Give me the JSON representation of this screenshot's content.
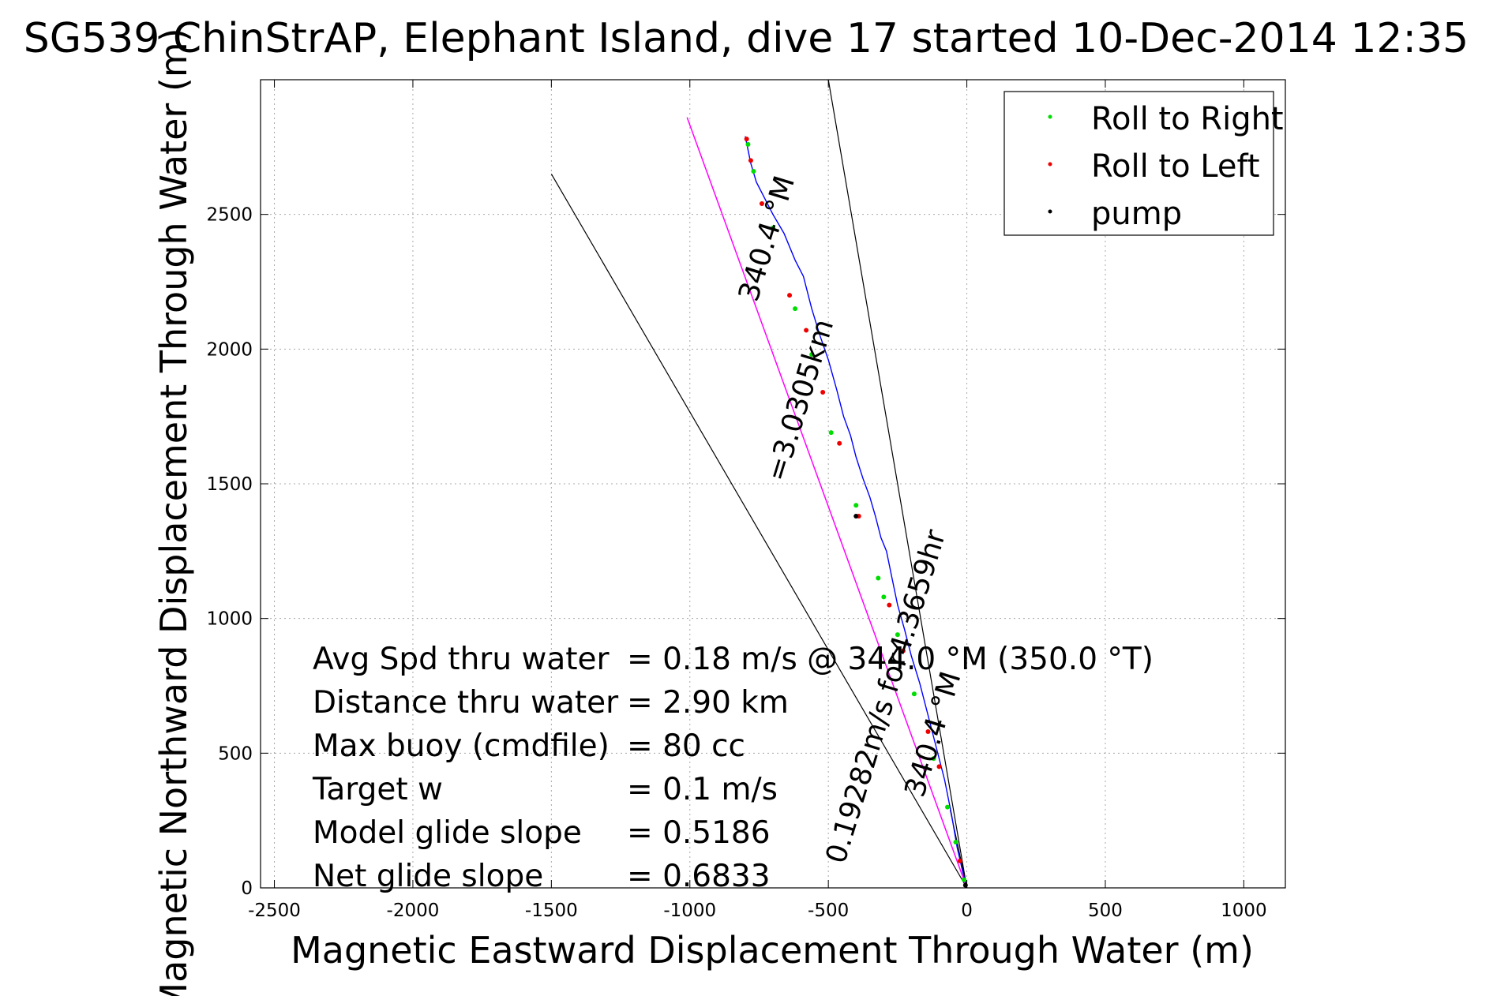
{
  "chart_data": {
    "type": "line",
    "title": "SG539 ChinStrAP, Elephant Island, dive 17 started 10-Dec-2014 12:35",
    "xlabel": "Magnetic Eastward Displacement Through Water (m)",
    "ylabel": "Magnetic Northward Displacement Through Water (m)",
    "xlim": [
      -2550,
      1150
    ],
    "ylim": [
      0,
      3000
    ],
    "x_ticks": [
      -2500,
      -2000,
      -1500,
      -1000,
      -500,
      0,
      500,
      1000
    ],
    "y_ticks": [
      0,
      500,
      1000,
      1500,
      2000,
      2500
    ],
    "x_tick_labels": [
      "-2500",
      "-2000",
      "-1500",
      "-1000",
      "-500",
      "0",
      "500",
      "1000"
    ],
    "y_tick_labels": [
      "0",
      "500",
      "1000",
      "1500",
      "2000",
      "2500"
    ],
    "grid": true,
    "legend_position": "top-right",
    "legend": [
      {
        "label": "Roll to Right",
        "color": "#00dd00"
      },
      {
        "label": "Roll to Left",
        "color": "#ee0000"
      },
      {
        "label": "pump",
        "color": "#000000"
      }
    ],
    "track": {
      "color": "#0000ff",
      "x": [
        0,
        -15,
        -35,
        -55,
        -80,
        -110,
        -140,
        -170,
        -200,
        -225,
        -250,
        -270,
        -290,
        -310,
        -330,
        -350,
        -375,
        -400,
        -420,
        -445,
        -470,
        -500,
        -530,
        -560,
        -590,
        -620,
        -660,
        -700,
        -730,
        -760,
        -780,
        -790,
        -800
      ],
      "y": [
        0,
        60,
        150,
        270,
        400,
        520,
        640,
        760,
        860,
        960,
        1050,
        1150,
        1250,
        1300,
        1380,
        1450,
        1520,
        1600,
        1680,
        1750,
        1850,
        1960,
        2050,
        2150,
        2270,
        2330,
        2430,
        2500,
        2560,
        2620,
        2690,
        2740,
        2790
      ]
    },
    "magenta_line": {
      "color": "#ff00ff",
      "x": [
        0,
        -1010
      ],
      "y": [
        0,
        2860
      ]
    },
    "reference_lines": [
      {
        "x": [
          0,
          -1500
        ],
        "y": [
          0,
          2650
        ],
        "color": "#000000"
      },
      {
        "x": [
          0,
          -500
        ],
        "y": [
          0,
          3000
        ],
        "color": "#000000"
      },
      {
        "x": [
          0,
          -60
        ],
        "y": [
          0,
          290
        ],
        "color": "#000000"
      }
    ],
    "roll_right_points": {
      "x": [
        -10,
        -40,
        -70,
        -120,
        -190,
        -250,
        -300,
        -320,
        -400,
        -490,
        -560,
        -620,
        -700,
        -770,
        -790
      ],
      "y": [
        30,
        170,
        300,
        480,
        720,
        940,
        1080,
        1150,
        1420,
        1690,
        1980,
        2150,
        2450,
        2660,
        2760
      ],
      "color": "#00dd00"
    },
    "roll_left_points": {
      "x": [
        -25,
        -100,
        -140,
        -230,
        -280,
        -390,
        -460,
        -520,
        -580,
        -640,
        -740,
        -780,
        -795
      ],
      "y": [
        100,
        450,
        580,
        880,
        1050,
        1380,
        1650,
        1840,
        2070,
        2200,
        2540,
        2700,
        2780
      ],
      "color": "#ee0000"
    },
    "pump_points": {
      "x": [
        -5,
        -400
      ],
      "y": [
        10,
        1380
      ],
      "color": "#000000"
    },
    "stats": [
      {
        "label": "Avg Spd thru water",
        "value": "=  0.18 m/s @ 344.0 °M (350.0 °T)"
      },
      {
        "label": "Distance thru water",
        "value": "=  2.90 km"
      },
      {
        "label": "Max buoy (cmdfile)",
        "value": "= 80 cc"
      },
      {
        "label": "Target w",
        "value": "= 0.1 m/s"
      },
      {
        "label": "Model glide slope",
        "value": "= 0.5186"
      },
      {
        "label": "Net glide slope",
        "value": "= 0.6833"
      }
    ],
    "annotations": [
      {
        "text": "340.4 °M",
        "x": -690,
        "y": 2400,
        "angle": -73
      },
      {
        "text": "=3.0305km",
        "x": -570,
        "y": 1800,
        "angle": -73
      },
      {
        "text": "0.19282m/s for4.3659hr",
        "x": -260,
        "y": 700,
        "angle": -73
      },
      {
        "text": "340.4 °M",
        "x": -90,
        "y": 560,
        "angle": -73
      }
    ]
  }
}
